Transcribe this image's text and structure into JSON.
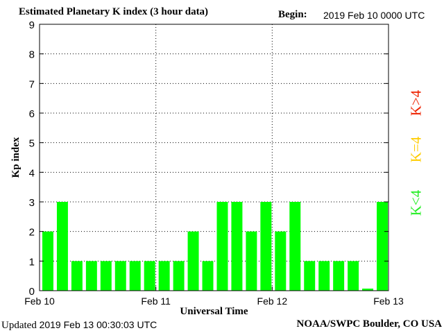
{
  "header": {
    "title": "Estimated Planetary K index (3 hour data)",
    "begin_label": "Begin:",
    "begin_value": "2019 Feb 10 0000 UTC"
  },
  "footer": {
    "updated_label": "Updated",
    "updated_value": "2019 Feb 13 00:30:03 UTC",
    "credit": "NOAA/SWPC Boulder, CO USA"
  },
  "legend": [
    {
      "label": "K<4",
      "color": "#22ee22"
    },
    {
      "label": "K=4",
      "color": "#ffcc00"
    },
    {
      "label": "K>4",
      "color": "#ee2200"
    }
  ],
  "chart_data": {
    "type": "bar",
    "title": "Estimated Planetary K index (3 hour data)",
    "xlabel": "Universal Time",
    "ylabel": "Kp index",
    "ylim": [
      0,
      9
    ],
    "yticks": [
      0,
      1,
      2,
      3,
      4,
      5,
      6,
      7,
      8,
      9
    ],
    "xticks": [
      "Feb 10",
      "Feb 11",
      "Feb 12",
      "Feb 13"
    ],
    "bar_color": "#00ff00",
    "grid": true,
    "values": [
      2,
      3,
      1,
      1,
      1,
      1,
      1,
      1,
      1,
      1,
      2,
      1,
      3,
      3,
      2,
      3,
      2,
      3,
      1,
      1,
      1,
      1,
      0.07,
      3
    ]
  }
}
